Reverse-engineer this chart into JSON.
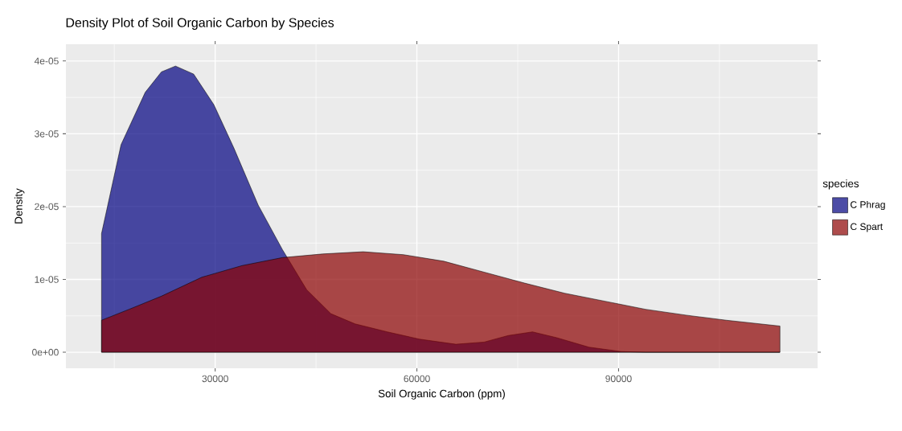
{
  "chart_data": {
    "type": "area",
    "title": "Density Plot of Soil Organic Carbon by Species",
    "xlabel": "Soil Organic Carbon (ppm)",
    "ylabel": "Density",
    "legend_title": "species",
    "legend": "right",
    "grid": true,
    "xlim": [
      7800,
      119600
    ],
    "xticks": [
      30000,
      60000,
      90000
    ],
    "ylim": [
      -2.2e-06,
      4.23e-05
    ],
    "yticks": [
      {
        "value": 0,
        "label": "0e+00"
      },
      {
        "value": 1e-05,
        "label": "1e-05"
      },
      {
        "value": 2e-05,
        "label": "2e-05"
      },
      {
        "value": 3e-05,
        "label": "3e-05"
      },
      {
        "value": 4e-05,
        "label": "4e-05"
      }
    ],
    "series": [
      {
        "name": "C Phrag",
        "color": "#000080",
        "x": [
          13100,
          16000,
          19600,
          22000,
          24100,
          26800,
          29800,
          32800,
          36400,
          40000,
          43600,
          47200,
          50800,
          55600,
          60400,
          65800,
          70000,
          73600,
          77200,
          80800,
          85600,
          90400,
          94000,
          114000
        ],
        "values": [
          1.63e-05,
          2.85e-05,
          3.57e-05,
          3.85e-05,
          3.93e-05,
          3.82e-05,
          3.4e-05,
          2.8e-05,
          2.02e-05,
          1.41e-05,
          8.6e-06,
          5.3e-06,
          3.9e-06,
          2.8e-06,
          1.8e-06,
          1.1e-06,
          1.4e-06,
          2.3e-06,
          2.8e-06,
          2e-06,
          7e-07,
          1e-07,
          0,
          0
        ]
      },
      {
        "name": "C Spart",
        "color": "#8b0000",
        "x": [
          13100,
          17200,
          22000,
          28000,
          34000,
          40000,
          46000,
          52000,
          58000,
          64000,
          70000,
          76000,
          82000,
          88000,
          94000,
          100000,
          106000,
          114000
        ],
        "values": [
          4.4e-06,
          5.9e-06,
          7.7e-06,
          1.03e-05,
          1.19e-05,
          1.3e-05,
          1.35e-05,
          1.38e-05,
          1.34e-05,
          1.25e-05,
          1.1e-05,
          9.5e-06,
          8.1e-06,
          7e-06,
          5.9e-06,
          5.1e-06,
          4.4e-06,
          3.6e-06
        ]
      }
    ]
  }
}
